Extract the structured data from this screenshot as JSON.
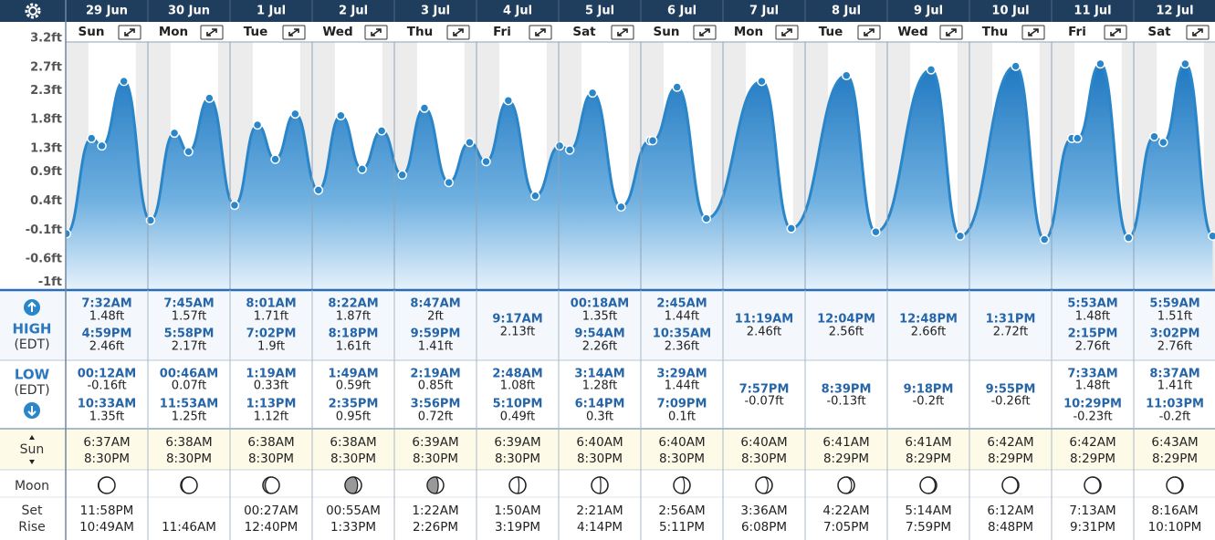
{
  "chart_data": {
    "type": "line",
    "ylim": [
      -1.13,
      3.2
    ],
    "yticks": [
      {
        "value": -1,
        "label": "-1ft"
      },
      {
        "value": -0.6,
        "label": "-0.6ft"
      },
      {
        "value": -0.1,
        "label": "-0.1ft"
      },
      {
        "value": 0.4,
        "label": "0.4ft"
      },
      {
        "value": 0.9,
        "label": "0.9ft"
      },
      {
        "value": 1.3,
        "label": "1.3ft"
      },
      {
        "value": 1.8,
        "label": "1.8ft"
      },
      {
        "value": 2.3,
        "label": "2.3ft"
      },
      {
        "value": 2.7,
        "label": "2.7ft"
      },
      {
        "value": 3.2,
        "label": "3.2ft"
      }
    ],
    "color": "#2a86c9"
  },
  "labels": {
    "high": "HIGH",
    "low": "LOW",
    "tz": "(EDT)",
    "sun": "Sun",
    "moon": "Moon",
    "set": "Set",
    "rise": "Rise"
  },
  "days": [
    {
      "date": "29 Jun",
      "weekday": "Sun",
      "high": [
        {
          "time": "7:32AM",
          "value": 1.48,
          "label": "1.48ft"
        },
        {
          "time": "4:59PM",
          "value": 2.46,
          "label": "2.46ft"
        }
      ],
      "low": [
        {
          "time": "00:12AM",
          "value": -0.16,
          "label": "-0.16ft"
        },
        {
          "time": "10:33AM",
          "value": 1.35,
          "label": "1.35ft"
        }
      ],
      "sunrise": "6:37AM",
      "sunset": "8:30PM",
      "moonset": "11:58PM",
      "moonrise": "10:49AM"
    },
    {
      "date": "30 Jun",
      "weekday": "Mon",
      "high": [
        {
          "time": "7:45AM",
          "value": 1.57,
          "label": "1.57ft"
        },
        {
          "time": "5:58PM",
          "value": 2.17,
          "label": "2.17ft"
        }
      ],
      "low": [
        {
          "time": "00:46AM",
          "value": 0.07,
          "label": "0.07ft"
        },
        {
          "time": "11:53AM",
          "value": 1.25,
          "label": "1.25ft"
        }
      ],
      "sunrise": "6:38AM",
      "sunset": "8:30PM",
      "moonrise": "11:46AM"
    },
    {
      "date": "1 Jul",
      "weekday": "Tue",
      "high": [
        {
          "time": "8:01AM",
          "value": 1.71,
          "label": "1.71ft"
        },
        {
          "time": "7:02PM",
          "value": 1.9,
          "label": "1.9ft"
        }
      ],
      "low": [
        {
          "time": "1:19AM",
          "value": 0.33,
          "label": "0.33ft"
        },
        {
          "time": "1:13PM",
          "value": 1.12,
          "label": "1.12ft"
        }
      ],
      "sunrise": "6:38AM",
      "sunset": "8:30PM",
      "moonset": "00:27AM",
      "moonrise": "12:40PM"
    },
    {
      "date": "2 Jul",
      "weekday": "Wed",
      "high": [
        {
          "time": "8:22AM",
          "value": 1.87,
          "label": "1.87ft"
        },
        {
          "time": "8:18PM",
          "value": 1.61,
          "label": "1.61ft"
        }
      ],
      "low": [
        {
          "time": "1:49AM",
          "value": 0.59,
          "label": "0.59ft"
        },
        {
          "time": "2:35PM",
          "value": 0.95,
          "label": "0.95ft"
        }
      ],
      "sunrise": "6:38AM",
      "sunset": "8:30PM",
      "moonset": "00:55AM",
      "moonrise": "1:33PM"
    },
    {
      "date": "3 Jul",
      "weekday": "Thu",
      "high": [
        {
          "time": "8:47AM",
          "value": 2,
          "label": "2ft"
        },
        {
          "time": "9:59PM",
          "value": 1.41,
          "label": "1.41ft"
        }
      ],
      "low": [
        {
          "time": "2:19AM",
          "value": 0.85,
          "label": "0.85ft"
        },
        {
          "time": "3:56PM",
          "value": 0.72,
          "label": "0.72ft"
        }
      ],
      "sunrise": "6:39AM",
      "sunset": "8:30PM",
      "moonset": "1:22AM",
      "moonrise": "2:26PM"
    },
    {
      "date": "4 Jul",
      "weekday": "Fri",
      "high": [
        {
          "time": "9:17AM",
          "value": 2.13,
          "label": "2.13ft"
        }
      ],
      "low": [
        {
          "time": "2:48AM",
          "value": 1.08,
          "label": "1.08ft"
        },
        {
          "time": "5:10PM",
          "value": 0.49,
          "label": "0.49ft"
        }
      ],
      "sunrise": "6:39AM",
      "sunset": "8:30PM",
      "moonset": "1:50AM",
      "moonrise": "3:19PM"
    },
    {
      "date": "5 Jul",
      "weekday": "Sat",
      "high": [
        {
          "time": "00:18AM",
          "value": 1.35,
          "label": "1.35ft"
        },
        {
          "time": "9:54AM",
          "value": 2.26,
          "label": "2.26ft"
        }
      ],
      "low": [
        {
          "time": "3:14AM",
          "value": 1.28,
          "label": "1.28ft"
        },
        {
          "time": "6:14PM",
          "value": 0.3,
          "label": "0.3ft"
        }
      ],
      "sunrise": "6:40AM",
      "sunset": "8:30PM",
      "moonset": "2:21AM",
      "moonrise": "4:14PM"
    },
    {
      "date": "6 Jul",
      "weekday": "Sun",
      "high": [
        {
          "time": "2:45AM",
          "value": 1.44,
          "label": "1.44ft"
        },
        {
          "time": "10:35AM",
          "value": 2.36,
          "label": "2.36ft"
        }
      ],
      "low": [
        {
          "time": "3:29AM",
          "value": 1.44,
          "label": "1.44ft"
        },
        {
          "time": "7:09PM",
          "value": 0.1,
          "label": "0.1ft"
        }
      ],
      "sunrise": "6:40AM",
      "sunset": "8:30PM",
      "moonset": "2:56AM",
      "moonrise": "5:11PM"
    },
    {
      "date": "7 Jul",
      "weekday": "Mon",
      "high": [
        {
          "time": "11:19AM",
          "value": 2.46,
          "label": "2.46ft"
        }
      ],
      "low": [
        {
          "time": "7:57PM",
          "value": -0.07,
          "label": "-0.07ft"
        }
      ],
      "sunrise": "6:40AM",
      "sunset": "8:30PM",
      "moonset": "3:36AM",
      "moonrise": "6:08PM"
    },
    {
      "date": "8 Jul",
      "weekday": "Tue",
      "high": [
        {
          "time": "12:04PM",
          "value": 2.56,
          "label": "2.56ft"
        }
      ],
      "low": [
        {
          "time": "8:39PM",
          "value": -0.13,
          "label": "-0.13ft"
        }
      ],
      "sunrise": "6:41AM",
      "sunset": "8:29PM",
      "moonset": "4:22AM",
      "moonrise": "7:05PM"
    },
    {
      "date": "9 Jul",
      "weekday": "Wed",
      "high": [
        {
          "time": "12:48PM",
          "value": 2.66,
          "label": "2.66ft"
        }
      ],
      "low": [
        {
          "time": "9:18PM",
          "value": -0.2,
          "label": "-0.2ft"
        }
      ],
      "sunrise": "6:41AM",
      "sunset": "8:29PM",
      "moonset": "5:14AM",
      "moonrise": "7:59PM"
    },
    {
      "date": "10 Jul",
      "weekday": "Thu",
      "high": [
        {
          "time": "1:31PM",
          "value": 2.72,
          "label": "2.72ft"
        }
      ],
      "low": [
        {
          "time": "9:55PM",
          "value": -0.26,
          "label": "-0.26ft"
        }
      ],
      "sunrise": "6:42AM",
      "sunset": "8:29PM",
      "moonset": "6:12AM",
      "moonrise": "8:48PM"
    },
    {
      "date": "11 Jul",
      "weekday": "Fri",
      "high": [
        {
          "time": "5:53AM",
          "value": 1.48,
          "label": "1.48ft"
        },
        {
          "time": "2:15PM",
          "value": 2.76,
          "label": "2.76ft"
        }
      ],
      "low": [
        {
          "time": "7:33AM",
          "value": 1.48,
          "label": "1.48ft"
        },
        {
          "time": "10:29PM",
          "value": -0.23,
          "label": "-0.23ft"
        }
      ],
      "sunrise": "6:42AM",
      "sunset": "8:29PM",
      "moonset": "7:13AM",
      "moonrise": "9:31PM"
    },
    {
      "date": "12 Jul",
      "weekday": "Sat",
      "high": [
        {
          "time": "5:59AM",
          "value": 1.51,
          "label": "1.51ft"
        },
        {
          "time": "3:02PM",
          "value": 2.76,
          "label": "2.76ft"
        }
      ],
      "low": [
        {
          "time": "8:37AM",
          "value": 1.41,
          "label": "1.41ft"
        },
        {
          "time": "11:03PM",
          "value": -0.2,
          "label": "-0.2ft"
        }
      ],
      "sunrise": "6:43AM",
      "sunset": "8:29PM",
      "moonset": "8:16AM",
      "moonrise": "10:10PM"
    }
  ]
}
